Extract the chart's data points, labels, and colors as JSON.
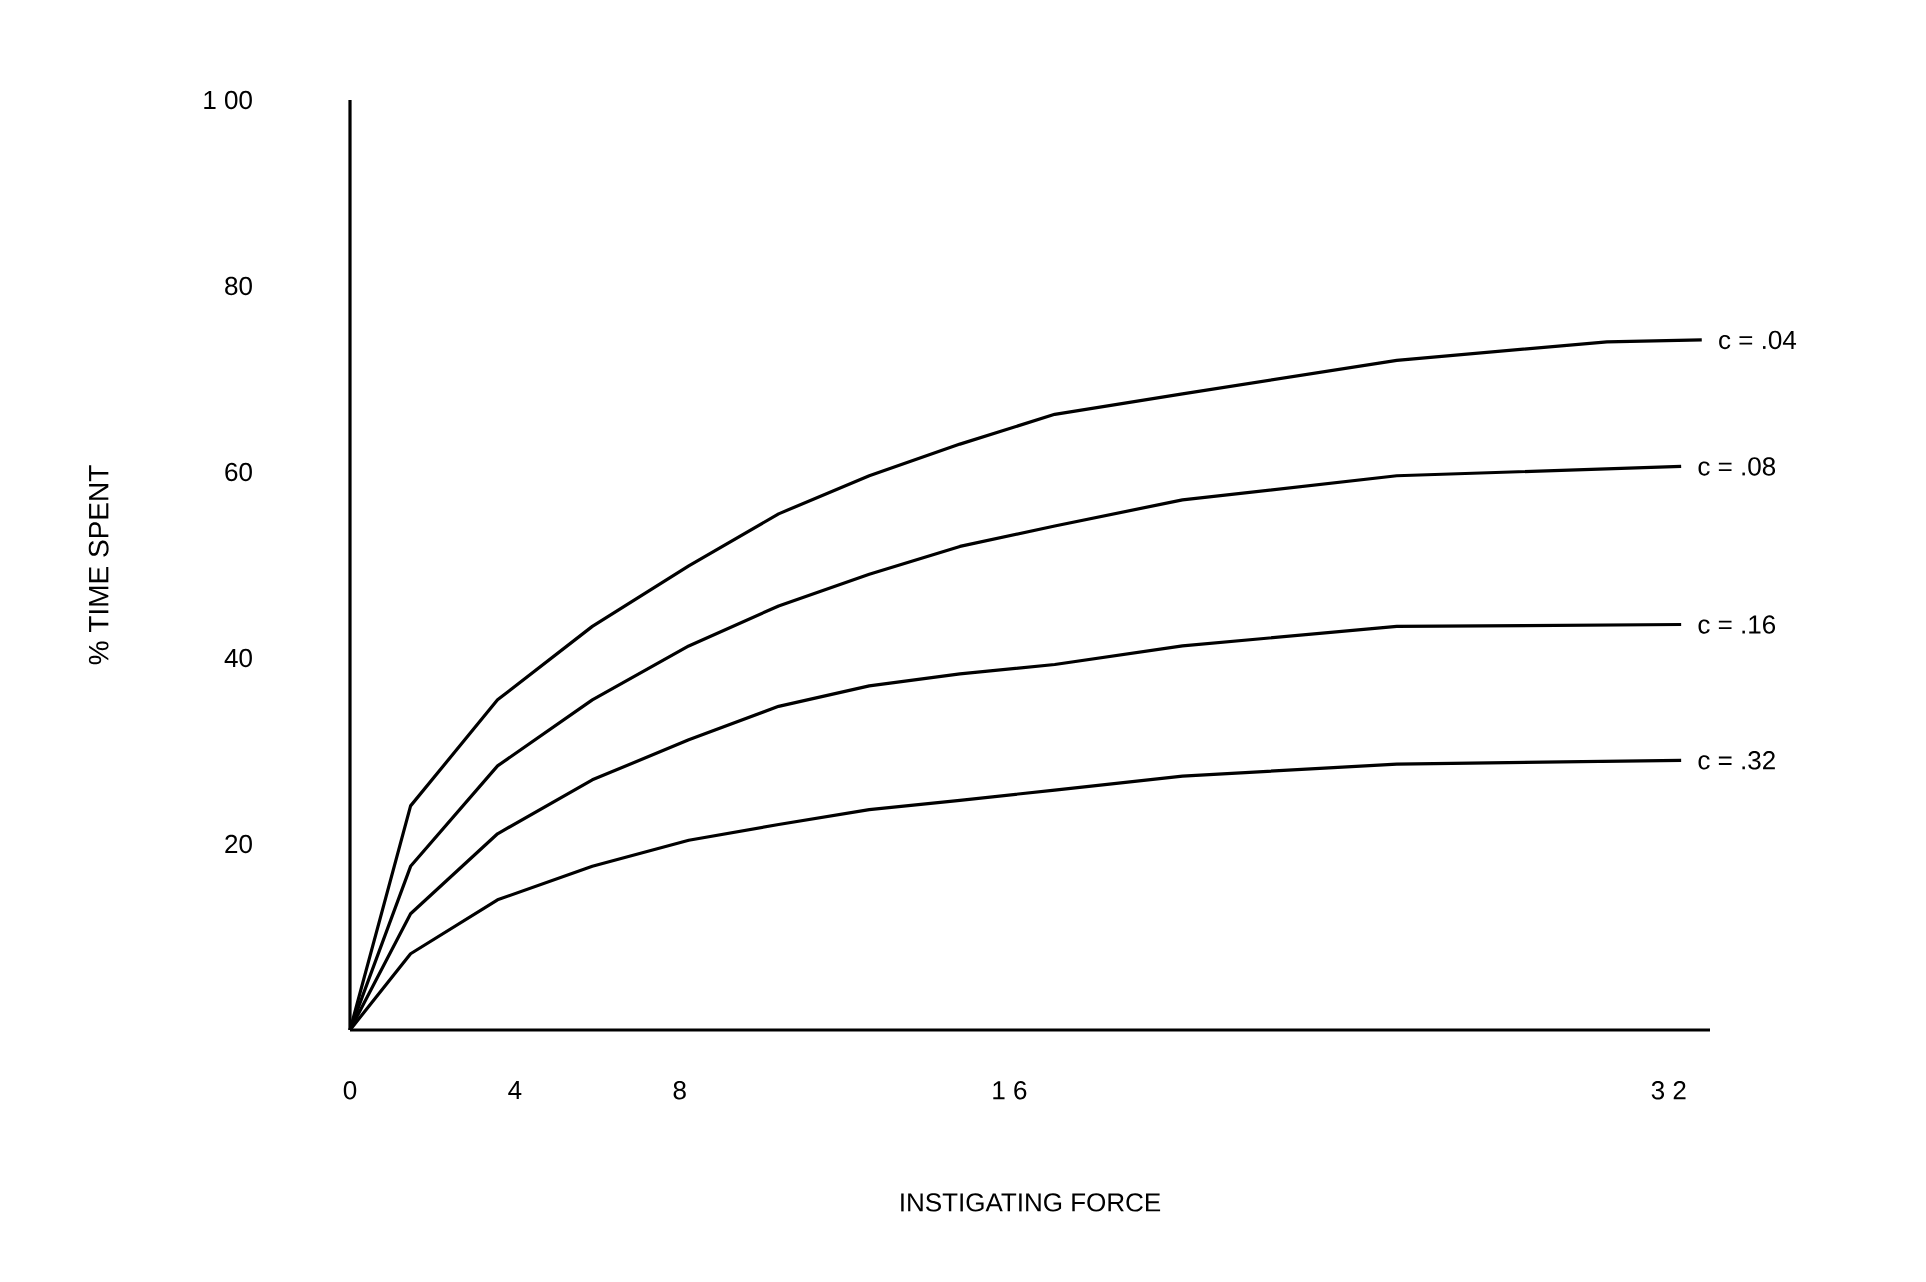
{
  "chart_data": {
    "type": "line",
    "xlabel": "INSTIGATING FORCE",
    "ylabel": "% TIME SPENT",
    "xlim": [
      0,
      33
    ],
    "ylim": [
      0,
      100
    ],
    "xticks": [
      0,
      4,
      8,
      {
        "value": 16,
        "label": "1 6"
      },
      {
        "value": 32,
        "label": "3 2"
      }
    ],
    "yticks": [
      20,
      40,
      60,
      80,
      {
        "value": 100,
        "label": "1 00"
      }
    ],
    "grid": false,
    "legend": false,
    "marker": "none",
    "line_style": "solid",
    "series": [
      {
        "name": "c = .04",
        "color": "#000000",
        "x": [
          0,
          1.47,
          3.58,
          5.88,
          8.22,
          10.4,
          12.6,
          14.8,
          17.1,
          20.2,
          25.4,
          30.5,
          32.8
        ],
        "values": [
          0,
          24.1,
          35.5,
          43.4,
          49.9,
          55.5,
          59.6,
          63,
          66.2,
          68.4,
          72,
          74,
          74.2
        ]
      },
      {
        "name": "c = .08",
        "color": "#000000",
        "x": [
          0,
          1.47,
          3.58,
          5.88,
          8.22,
          10.4,
          12.6,
          14.8,
          17.1,
          20.2,
          25.4,
          32.3
        ],
        "values": [
          0,
          17.6,
          28.4,
          35.5,
          41.3,
          45.6,
          49,
          52,
          54.2,
          57,
          59.6,
          60.6
        ]
      },
      {
        "name": "c = .16",
        "color": "#000000",
        "x": [
          0,
          1.47,
          3.58,
          5.88,
          8.22,
          10.4,
          12.6,
          14.8,
          17.1,
          20.2,
          25.4,
          32.3
        ],
        "values": [
          0,
          12.5,
          21.1,
          26.9,
          31.2,
          34.8,
          37,
          38.3,
          39.3,
          41.3,
          43.4,
          43.6
        ]
      },
      {
        "name": "c = .32",
        "color": "#000000",
        "x": [
          0,
          1.47,
          3.58,
          5.88,
          8.22,
          10.4,
          12.6,
          14.8,
          17.1,
          20.2,
          25.4,
          32.3
        ],
        "values": [
          0,
          8.2,
          14,
          17.6,
          20.4,
          22.1,
          23.7,
          24.7,
          25.8,
          27.3,
          28.6,
          29
        ]
      }
    ]
  }
}
